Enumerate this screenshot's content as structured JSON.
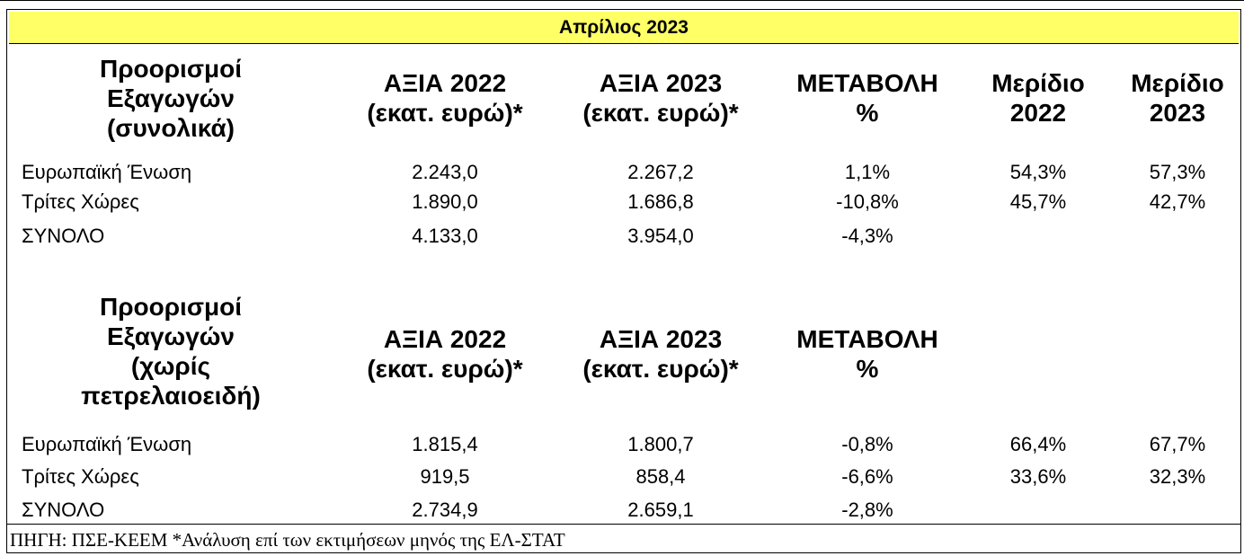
{
  "title": "Απρίλιος 2023",
  "colors": {
    "banner": "#FFFF66",
    "border": "#000000"
  },
  "table1": {
    "headers": {
      "dest": [
        "Προορισμοί",
        "Εξαγωγών",
        "(συνολικά)"
      ],
      "v2022": [
        "ΑΞΙΑ 2022",
        "(εκατ. ευρώ)*"
      ],
      "v2023": [
        "ΑΞΙΑ 2023",
        "(εκατ. ευρώ)*"
      ],
      "change": [
        "ΜΕΤΑΒΟΛΗ",
        "%"
      ],
      "share2022": [
        "Μερίδιο",
        "2022"
      ],
      "share2023": [
        "Μερίδιο",
        "2023"
      ]
    },
    "rows": [
      {
        "label": "Ευρωπαϊκή Ένωση",
        "v2022": "2.243,0",
        "v2023": "2.267,2",
        "change": "1,1%",
        "share2022": "54,3%",
        "share2023": "57,3%"
      },
      {
        "label": "Τρίτες Χώρες",
        "v2022": "1.890,0",
        "v2023": "1.686,8",
        "change": "-10,8%",
        "share2022": "45,7%",
        "share2023": "42,7%"
      },
      {
        "label": "ΣΥΝΟΛΟ",
        "v2022": "4.133,0",
        "v2023": "3.954,0",
        "change": "-4,3%",
        "share2022": "",
        "share2023": ""
      }
    ]
  },
  "table2": {
    "headers": {
      "dest": [
        "Προορισμοί",
        "Εξαγωγών",
        "(χωρίς",
        "πετρελαιοειδή)"
      ],
      "v2022": [
        "ΑΞΙΑ 2022",
        "(εκατ. ευρώ)*"
      ],
      "v2023": [
        "ΑΞΙΑ 2023",
        "(εκατ. ευρώ)*"
      ],
      "change": [
        "ΜΕΤΑΒΟΛΗ",
        "%"
      ]
    },
    "rows": [
      {
        "label": "Ευρωπαϊκή Ένωση",
        "v2022": "1.815,4",
        "v2023": "1.800,7",
        "change": "-0,8%",
        "share2022": "66,4%",
        "share2023": "67,7%"
      },
      {
        "label": "Τρίτες Χώρες",
        "v2022": "919,5",
        "v2023": "858,4",
        "change": "-6,6%",
        "share2022": "33,6%",
        "share2023": "32,3%"
      },
      {
        "label": "ΣΥΝΟΛΟ",
        "v2022": "2.734,9",
        "v2023": "2.659,1",
        "change": "-2,8%",
        "share2022": "",
        "share2023": ""
      }
    ]
  },
  "source": "ΠΗΓΗ: ΠΣΕ-ΚΕΕΜ *Ανάλυση επί των εκτιμήσεων μηνός της ΕΛ-ΣΤΑΤ"
}
